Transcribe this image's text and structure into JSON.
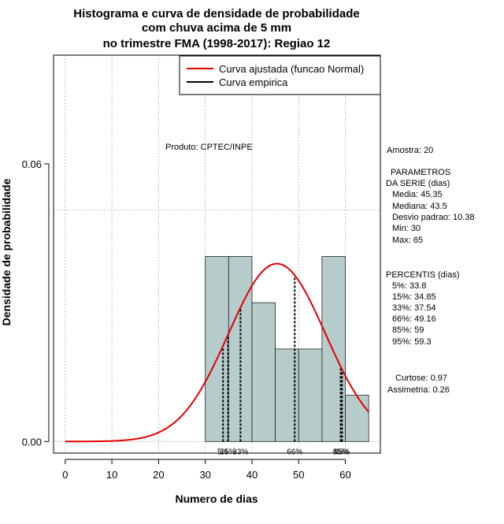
{
  "chart_data": {
    "type": "histogram",
    "title_lines": [
      "Histograma e curva de densidade de probabilidade",
      "com chuva acima de 5 mm",
      "no trimestre FMA (1998-2017): Regiao 12"
    ],
    "xlabel": "Numero de dias",
    "ylabel": "Densidade de probabilidade",
    "xlim": [
      -2.5,
      67.5
    ],
    "ylim": [
      -0.0025,
      0.0835
    ],
    "x_ticks": [
      0,
      10,
      20,
      30,
      40,
      50,
      60
    ],
    "y_ticks": [
      0.0,
      0.06
    ],
    "y_tick_labels": [
      "0.00",
      "0.06"
    ],
    "grid": true,
    "grid_x": [
      0,
      10,
      20,
      30,
      40,
      50,
      60
    ],
    "grid_y": [
      0,
      0.05
    ],
    "bins": [
      {
        "from": 30,
        "to": 35,
        "density": 0.04
      },
      {
        "from": 35,
        "to": 40,
        "density": 0.04
      },
      {
        "from": 40,
        "to": 45,
        "density": 0.03
      },
      {
        "from": 45,
        "to": 50,
        "density": 0.02
      },
      {
        "from": 50,
        "to": 55,
        "density": 0.02
      },
      {
        "from": 55,
        "to": 60,
        "density": 0.04
      },
      {
        "from": 60,
        "to": 65,
        "density": 0.01
      }
    ],
    "normal_curve": {
      "mean": 45.35,
      "sd": 10.38,
      "from": 0,
      "to": 65,
      "color": "#e00000"
    },
    "percentiles": [
      {
        "label": "5%",
        "value": 33.8
      },
      {
        "label": "15%",
        "value": 34.85
      },
      {
        "label": "33%",
        "value": 37.54
      },
      {
        "label": "66%",
        "value": 49.16
      },
      {
        "label": "85%",
        "value": 59
      },
      {
        "label": "95%",
        "value": 59.3
      }
    ],
    "legend": {
      "position": "top-right",
      "entries": [
        {
          "label": "Curva ajustada (funcao Normal)",
          "color": "#e00000"
        },
        {
          "label": "Curva empirica",
          "color": "#000000"
        }
      ]
    },
    "colors": {
      "bar_fill": "#b5cccb",
      "bar_stroke": "#222222",
      "curve": "#e00000",
      "grid": "#b0b0b0"
    }
  },
  "product_note": "Produto: CPTEC/INPE",
  "side_info": {
    "amostra": "Amostra: 20",
    "param_header_1": "PARAMETROS",
    "param_header_2": "DA SERIE (dias)",
    "media": "Media: 45.35",
    "mediana": "Mediana: 43.5",
    "desvio": "Desvio padrao: 10.38",
    "min": "Min: 30",
    "max": "Max: 65",
    "pct_header": "PERCENTIS (dias)",
    "p5": "5%: 33.8",
    "p15": "15%: 34.85",
    "p33": "33%: 37.54",
    "p66": "66%: 49.16",
    "p85": "85%: 59",
    "p95": "95%: 59.3",
    "curtose": "Curtose: 0.97",
    "assimetria": "Assimetria: 0.26"
  }
}
